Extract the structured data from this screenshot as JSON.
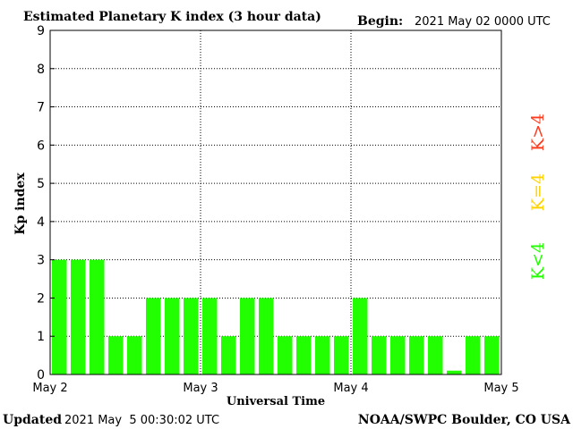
{
  "chart_data": {
    "type": "bar",
    "title": "Estimated Planetary K index (3 hour data)",
    "begin_label": "Begin:",
    "begin_value": "2021 May 02 0000 UTC",
    "ylabel": "Kp index",
    "xlabel": "Universal Time",
    "ylim": [
      0,
      9
    ],
    "yticks": [
      "0",
      "1",
      "2",
      "3",
      "4",
      "5",
      "6",
      "7",
      "8",
      "9"
    ],
    "x_tick_labels": [
      "May 2",
      "May 3",
      "May 4",
      "May 5"
    ],
    "grid": true,
    "bar_color": "#22ff00",
    "values": [
      3,
      3,
      3,
      1,
      1,
      2,
      2,
      2,
      2,
      1,
      2,
      2,
      1,
      1,
      1,
      1,
      2,
      1,
      1,
      1,
      1,
      0.1,
      1,
      1
    ],
    "legend": [
      {
        "label": "K>4",
        "color": "#ff3b1f"
      },
      {
        "label": "K=4",
        "color": "#ffd200"
      },
      {
        "label": "K<4",
        "color": "#22ff00"
      }
    ],
    "footer_left_label": "Updated",
    "footer_left_value": "2021 May  5 00:30:02 UTC",
    "footer_right": "NOAA/SWPC Boulder, CO USA"
  }
}
